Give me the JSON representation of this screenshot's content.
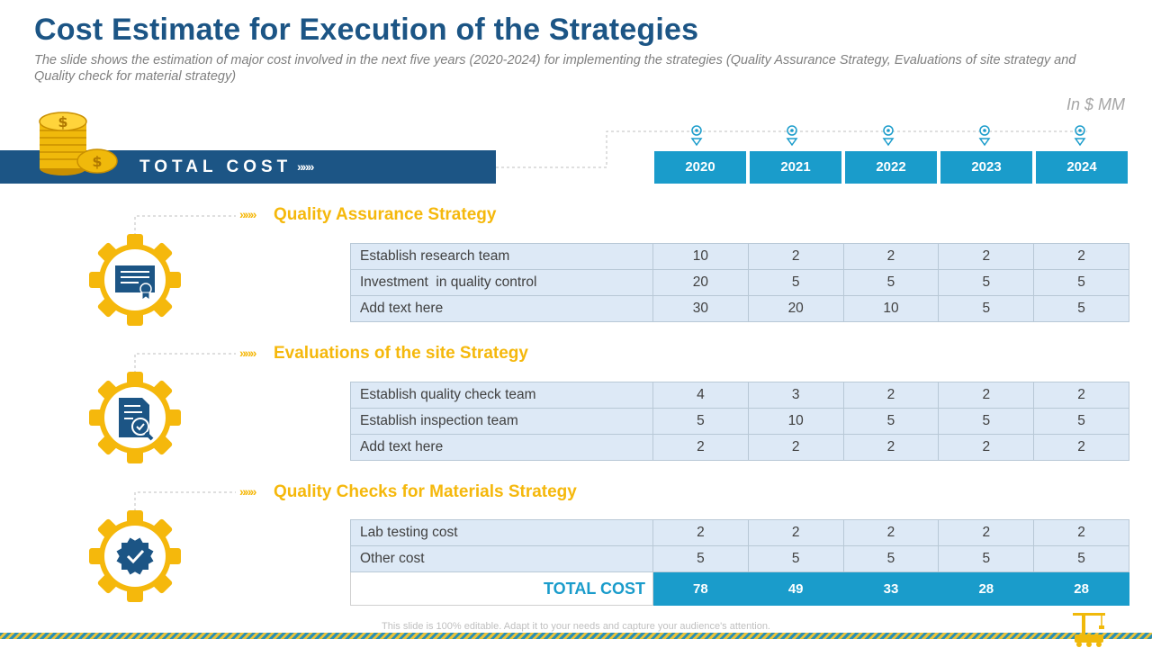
{
  "header": {
    "title": "Cost Estimate for Execution of the Strategies",
    "subtitle": "The slide shows the estimation of major cost involved in the next five years (2020-2024) for implementing the strategies (Quality Assurance Strategy, Evaluations of site strategy and Quality check for material strategy)",
    "unit": "In $ MM"
  },
  "total_bar": {
    "label": "TOTAL COST",
    "arrows": "»»»"
  },
  "years": [
    "2020",
    "2021",
    "2022",
    "2023",
    "2024"
  ],
  "sections": [
    {
      "heading": "Quality Assurance Strategy",
      "arrows": "»»»",
      "icon": "certificate-icon",
      "rows": [
        {
          "label": "Establish research team",
          "values": [
            "10",
            "2",
            "2",
            "2",
            "2"
          ]
        },
        {
          "label": "Investment  in quality control",
          "values": [
            "20",
            "5",
            "5",
            "5",
            "5"
          ]
        },
        {
          "label": "Add text here",
          "values": [
            "30",
            "20",
            "10",
            "5",
            "5"
          ]
        }
      ]
    },
    {
      "heading": "Evaluations of the site Strategy",
      "arrows": "»»»",
      "icon": "document-inspection-icon",
      "rows": [
        {
          "label": "Establish quality check team",
          "values": [
            "4",
            "3",
            "2",
            "2",
            "2"
          ]
        },
        {
          "label": "Establish inspection team",
          "values": [
            "5",
            "10",
            "5",
            "5",
            "5"
          ]
        },
        {
          "label": "Add text here",
          "values": [
            "2",
            "2",
            "2",
            "2",
            "2"
          ]
        }
      ]
    },
    {
      "heading": "Quality Checks for Materials Strategy",
      "arrows": "»»»",
      "icon": "verified-badge-icon",
      "rows": [
        {
          "label": "Lab testing cost",
          "values": [
            "2",
            "2",
            "2",
            "2",
            "2"
          ]
        },
        {
          "label": "Other cost",
          "values": [
            "5",
            "5",
            "5",
            "5",
            "5"
          ]
        }
      ],
      "total": {
        "label": "TOTAL COST",
        "values": [
          "78",
          "49",
          "33",
          "28",
          "28"
        ]
      }
    }
  ],
  "footer": {
    "text": "This slide is 100% editable. Adapt it to your needs and capture your audience's attention."
  },
  "colors": {
    "navy": "#1c5585",
    "blue": "#1a9ccb",
    "gold": "#f5b80c",
    "cell": "#dde9f6"
  }
}
